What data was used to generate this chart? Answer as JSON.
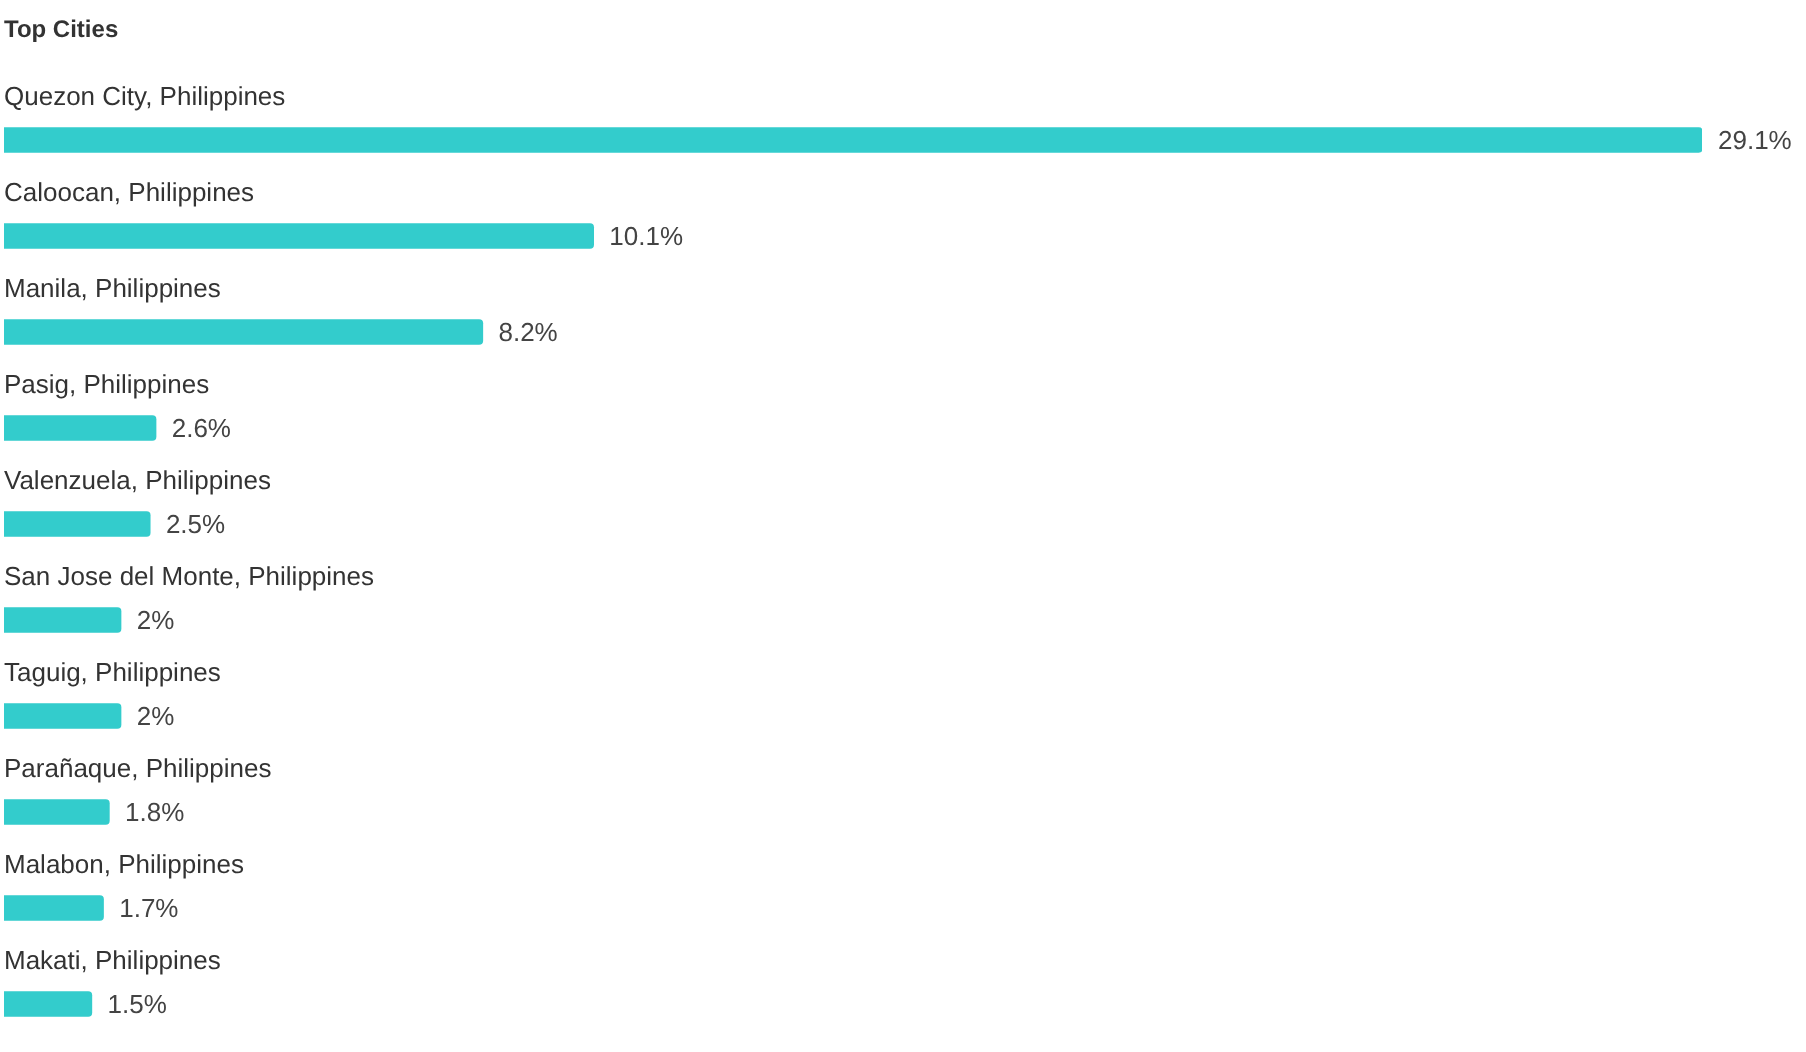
{
  "chart_data": {
    "type": "bar",
    "orientation": "horizontal",
    "title": "Top Cities",
    "categories": [
      "Quezon City, Philippines",
      "Caloocan, Philippines",
      "Manila, Philippines",
      "Pasig, Philippines",
      "Valenzuela, Philippines",
      "San Jose del Monte, Philippines",
      "Taguig, Philippines",
      "Parañaque, Philippines",
      "Malabon, Philippines",
      "Makati, Philippines"
    ],
    "values": [
      29.1,
      10.1,
      8.2,
      2.6,
      2.5,
      2,
      2,
      1.8,
      1.7,
      1.5
    ],
    "value_labels": [
      "29.1%",
      "10.1%",
      "8.2%",
      "2.6%",
      "2.5%",
      "2%",
      "2%",
      "1.8%",
      "1.7%",
      "1.5%"
    ],
    "color": "#33cccc"
  }
}
